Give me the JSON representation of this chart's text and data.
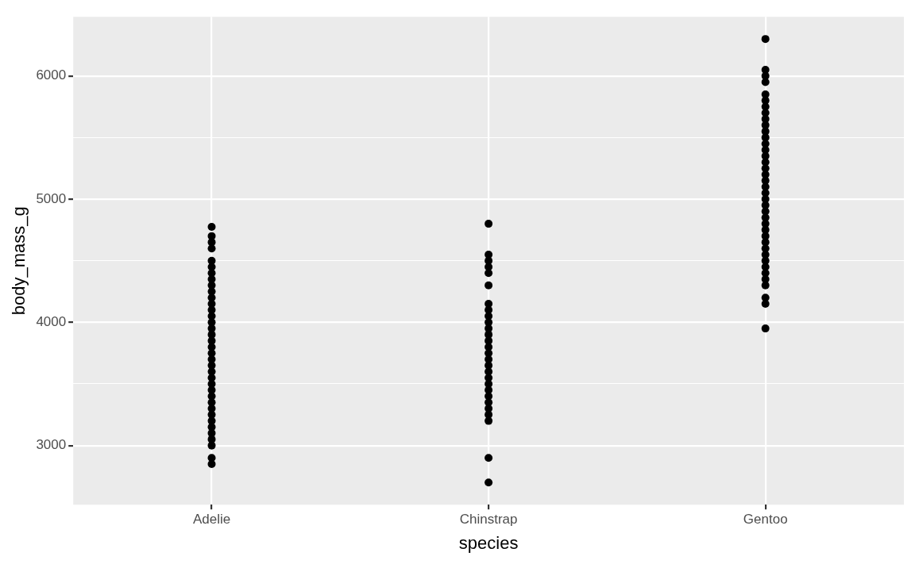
{
  "chart_data": {
    "type": "scatter",
    "xlabel": "species",
    "ylabel": "body_mass_g",
    "categories": [
      "Adelie",
      "Chinstrap",
      "Gentoo"
    ],
    "ylim": [
      2520,
      6480
    ],
    "yticks": [
      {
        "value": 3000,
        "label": "3000"
      },
      {
        "value": 3500,
        "label": null
      },
      {
        "value": 4000,
        "label": "4000"
      },
      {
        "value": 4500,
        "label": null
      },
      {
        "value": 5000,
        "label": "5000"
      },
      {
        "value": 5500,
        "label": null
      },
      {
        "value": 6000,
        "label": "6000"
      }
    ],
    "grid": true,
    "legend": false,
    "marker": "circle",
    "series": [
      {
        "color": "#000000",
        "x": [
          "Adelie",
          "Adelie",
          "Adelie",
          "Adelie",
          "Adelie",
          "Adelie",
          "Adelie",
          "Adelie",
          "Adelie",
          "Adelie",
          "Adelie",
          "Adelie",
          "Adelie",
          "Adelie",
          "Adelie",
          "Adelie",
          "Adelie",
          "Adelie",
          "Adelie",
          "Adelie",
          "Adelie",
          "Adelie",
          "Adelie",
          "Adelie",
          "Adelie",
          "Adelie",
          "Adelie",
          "Adelie",
          "Adelie",
          "Adelie",
          "Adelie",
          "Adelie",
          "Adelie",
          "Adelie",
          "Adelie",
          "Adelie",
          "Adelie"
        ],
        "values": [
          4775,
          4700,
          4650,
          4600,
          4500,
          4450,
          4400,
          4350,
          4300,
          4250,
          4200,
          4150,
          4100,
          4050,
          4000,
          3950,
          3900,
          3850,
          3800,
          3750,
          3700,
          3650,
          3600,
          3550,
          3500,
          3450,
          3400,
          3350,
          3300,
          3250,
          3200,
          3150,
          3100,
          3050,
          3000,
          2900,
          2850
        ]
      },
      {
        "color": "#000000",
        "x": [
          "Chinstrap",
          "Chinstrap",
          "Chinstrap",
          "Chinstrap",
          "Chinstrap",
          "Chinstrap",
          "Chinstrap",
          "Chinstrap",
          "Chinstrap",
          "Chinstrap",
          "Chinstrap",
          "Chinstrap",
          "Chinstrap",
          "Chinstrap",
          "Chinstrap",
          "Chinstrap",
          "Chinstrap",
          "Chinstrap",
          "Chinstrap",
          "Chinstrap",
          "Chinstrap",
          "Chinstrap",
          "Chinstrap",
          "Chinstrap",
          "Chinstrap",
          "Chinstrap",
          "Chinstrap",
          "Chinstrap"
        ],
        "values": [
          4800,
          4550,
          4500,
          4450,
          4400,
          4300,
          4150,
          4100,
          4050,
          4000,
          3950,
          3900,
          3850,
          3800,
          3750,
          3700,
          3650,
          3600,
          3550,
          3500,
          3450,
          3400,
          3350,
          3300,
          3250,
          3200,
          2900,
          2700
        ]
      },
      {
        "color": "#000000",
        "x": [
          "Gentoo",
          "Gentoo",
          "Gentoo",
          "Gentoo",
          "Gentoo",
          "Gentoo",
          "Gentoo",
          "Gentoo",
          "Gentoo",
          "Gentoo",
          "Gentoo",
          "Gentoo",
          "Gentoo",
          "Gentoo",
          "Gentoo",
          "Gentoo",
          "Gentoo",
          "Gentoo",
          "Gentoo",
          "Gentoo",
          "Gentoo",
          "Gentoo",
          "Gentoo",
          "Gentoo",
          "Gentoo",
          "Gentoo",
          "Gentoo",
          "Gentoo",
          "Gentoo",
          "Gentoo",
          "Gentoo",
          "Gentoo",
          "Gentoo",
          "Gentoo",
          "Gentoo",
          "Gentoo",
          "Gentoo",
          "Gentoo",
          "Gentoo"
        ],
        "values": [
          6300,
          6050,
          6000,
          5950,
          5850,
          5800,
          5750,
          5700,
          5650,
          5600,
          5550,
          5500,
          5450,
          5400,
          5350,
          5300,
          5250,
          5200,
          5150,
          5100,
          5050,
          5000,
          4950,
          4900,
          4850,
          4800,
          4750,
          4700,
          4650,
          4600,
          4550,
          4500,
          4450,
          4400,
          4350,
          4300,
          4200,
          4150,
          3950
        ]
      }
    ]
  }
}
